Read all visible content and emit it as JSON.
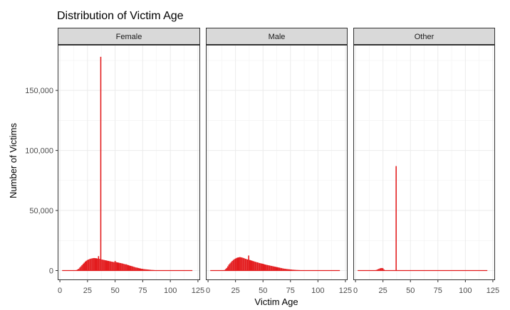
{
  "chart_data": {
    "type": "histogram",
    "title": "Distribution of Victim Age",
    "xlabel": "Victim Age",
    "ylabel": "Number of Victims",
    "xlim": [
      -2,
      127
    ],
    "ylim": [
      -8000,
      188000
    ],
    "x_ticks": [
      0,
      25,
      50,
      75,
      100,
      125
    ],
    "x_tick_labels": [
      "0",
      "25",
      "50",
      "75",
      "100",
      "125"
    ],
    "y_ticks": [
      0,
      50000,
      100000,
      150000
    ],
    "y_tick_labels": [
      "0",
      "50,000",
      "100,000",
      "150,000"
    ],
    "grid": true,
    "bar_color": "#e31a1c",
    "panel_strip_color": "#d9d9d9",
    "facets": [
      {
        "label": "Female",
        "x_range": [
          2,
          120
        ],
        "bins": [
          [
            15,
            400
          ],
          [
            16,
            900
          ],
          [
            17,
            1500
          ],
          [
            18,
            2500
          ],
          [
            19,
            3500
          ],
          [
            20,
            4500
          ],
          [
            21,
            5500
          ],
          [
            22,
            6500
          ],
          [
            23,
            7500
          ],
          [
            24,
            8200
          ],
          [
            25,
            8800
          ],
          [
            26,
            9200
          ],
          [
            27,
            9600
          ],
          [
            28,
            9900
          ],
          [
            29,
            10100
          ],
          [
            30,
            10300
          ],
          [
            31,
            10400
          ],
          [
            32,
            10300
          ],
          [
            33,
            10200
          ],
          [
            34,
            10000
          ],
          [
            35,
            12000
          ],
          [
            36,
            9700
          ],
          [
            37,
            178000
          ],
          [
            38,
            9200
          ],
          [
            39,
            9000
          ],
          [
            40,
            8800
          ],
          [
            41,
            8600
          ],
          [
            42,
            8400
          ],
          [
            43,
            8200
          ],
          [
            44,
            8000
          ],
          [
            45,
            7800
          ],
          [
            46,
            7600
          ],
          [
            47,
            7400
          ],
          [
            48,
            7200
          ],
          [
            49,
            7000
          ],
          [
            50,
            8000
          ],
          [
            51,
            7000
          ],
          [
            52,
            6800
          ],
          [
            53,
            6600
          ],
          [
            54,
            6400
          ],
          [
            55,
            6200
          ],
          [
            56,
            6000
          ],
          [
            57,
            5800
          ],
          [
            58,
            5500
          ],
          [
            59,
            5200
          ],
          [
            60,
            5200
          ],
          [
            61,
            4800
          ],
          [
            62,
            4500
          ],
          [
            63,
            4200
          ],
          [
            64,
            3900
          ],
          [
            65,
            3700
          ],
          [
            66,
            3400
          ],
          [
            67,
            3100
          ],
          [
            68,
            2800
          ],
          [
            69,
            2500
          ],
          [
            70,
            2400
          ],
          [
            71,
            2100
          ],
          [
            72,
            1900
          ],
          [
            73,
            1700
          ],
          [
            74,
            1500
          ],
          [
            75,
            1400
          ],
          [
            76,
            1200
          ],
          [
            77,
            1100
          ],
          [
            78,
            1000
          ],
          [
            79,
            900
          ],
          [
            80,
            800
          ],
          [
            81,
            700
          ],
          [
            82,
            600
          ],
          [
            83,
            500
          ],
          [
            84,
            450
          ],
          [
            85,
            400
          ]
        ]
      },
      {
        "label": "Male",
        "x_range": [
          2,
          120
        ],
        "bins": [
          [
            15,
            500
          ],
          [
            16,
            1200
          ],
          [
            17,
            2200
          ],
          [
            18,
            3500
          ],
          [
            19,
            5000
          ],
          [
            20,
            6000
          ],
          [
            21,
            7000
          ],
          [
            22,
            8000
          ],
          [
            23,
            8800
          ],
          [
            24,
            9500
          ],
          [
            25,
            10000
          ],
          [
            26,
            10500
          ],
          [
            27,
            10800
          ],
          [
            28,
            11000
          ],
          [
            29,
            11200
          ],
          [
            30,
            11000
          ],
          [
            31,
            10800
          ],
          [
            32,
            10500
          ],
          [
            33,
            10200
          ],
          [
            34,
            9800
          ],
          [
            35,
            9500
          ],
          [
            36,
            9200
          ],
          [
            37,
            12500
          ],
          [
            38,
            8800
          ],
          [
            39,
            8500
          ],
          [
            40,
            8200
          ],
          [
            41,
            7900
          ],
          [
            42,
            7600
          ],
          [
            43,
            7300
          ],
          [
            44,
            7000
          ],
          [
            45,
            6800
          ],
          [
            46,
            6500
          ],
          [
            47,
            6200
          ],
          [
            48,
            6000
          ],
          [
            49,
            5800
          ],
          [
            50,
            5600
          ],
          [
            51,
            5300
          ],
          [
            52,
            5000
          ],
          [
            53,
            4800
          ],
          [
            54,
            4600
          ],
          [
            55,
            4400
          ],
          [
            56,
            4200
          ],
          [
            57,
            4000
          ],
          [
            58,
            3800
          ],
          [
            59,
            3600
          ],
          [
            60,
            3400
          ],
          [
            61,
            3200
          ],
          [
            62,
            3000
          ],
          [
            63,
            2800
          ],
          [
            64,
            2600
          ],
          [
            65,
            2400
          ],
          [
            66,
            2200
          ],
          [
            67,
            2000
          ],
          [
            68,
            1800
          ],
          [
            69,
            1600
          ],
          [
            70,
            1500
          ],
          [
            71,
            1350
          ],
          [
            72,
            1200
          ],
          [
            73,
            1100
          ],
          [
            74,
            1000
          ],
          [
            75,
            900
          ],
          [
            76,
            800
          ],
          [
            77,
            700
          ],
          [
            78,
            650
          ],
          [
            79,
            600
          ],
          [
            80,
            500
          ],
          [
            81,
            450
          ],
          [
            82,
            400
          ],
          [
            83,
            350
          ],
          [
            84,
            300
          ],
          [
            85,
            250
          ],
          [
            86,
            200
          ],
          [
            87,
            150
          ]
        ]
      },
      {
        "label": "Other",
        "x_range": [
          2,
          120
        ],
        "bins": [
          [
            19,
            500
          ],
          [
            20,
            900
          ],
          [
            21,
            1300
          ],
          [
            22,
            1700
          ],
          [
            23,
            2000
          ],
          [
            24,
            2100
          ],
          [
            25,
            1900
          ],
          [
            26,
            800
          ],
          [
            37,
            87000
          ]
        ]
      }
    ]
  }
}
